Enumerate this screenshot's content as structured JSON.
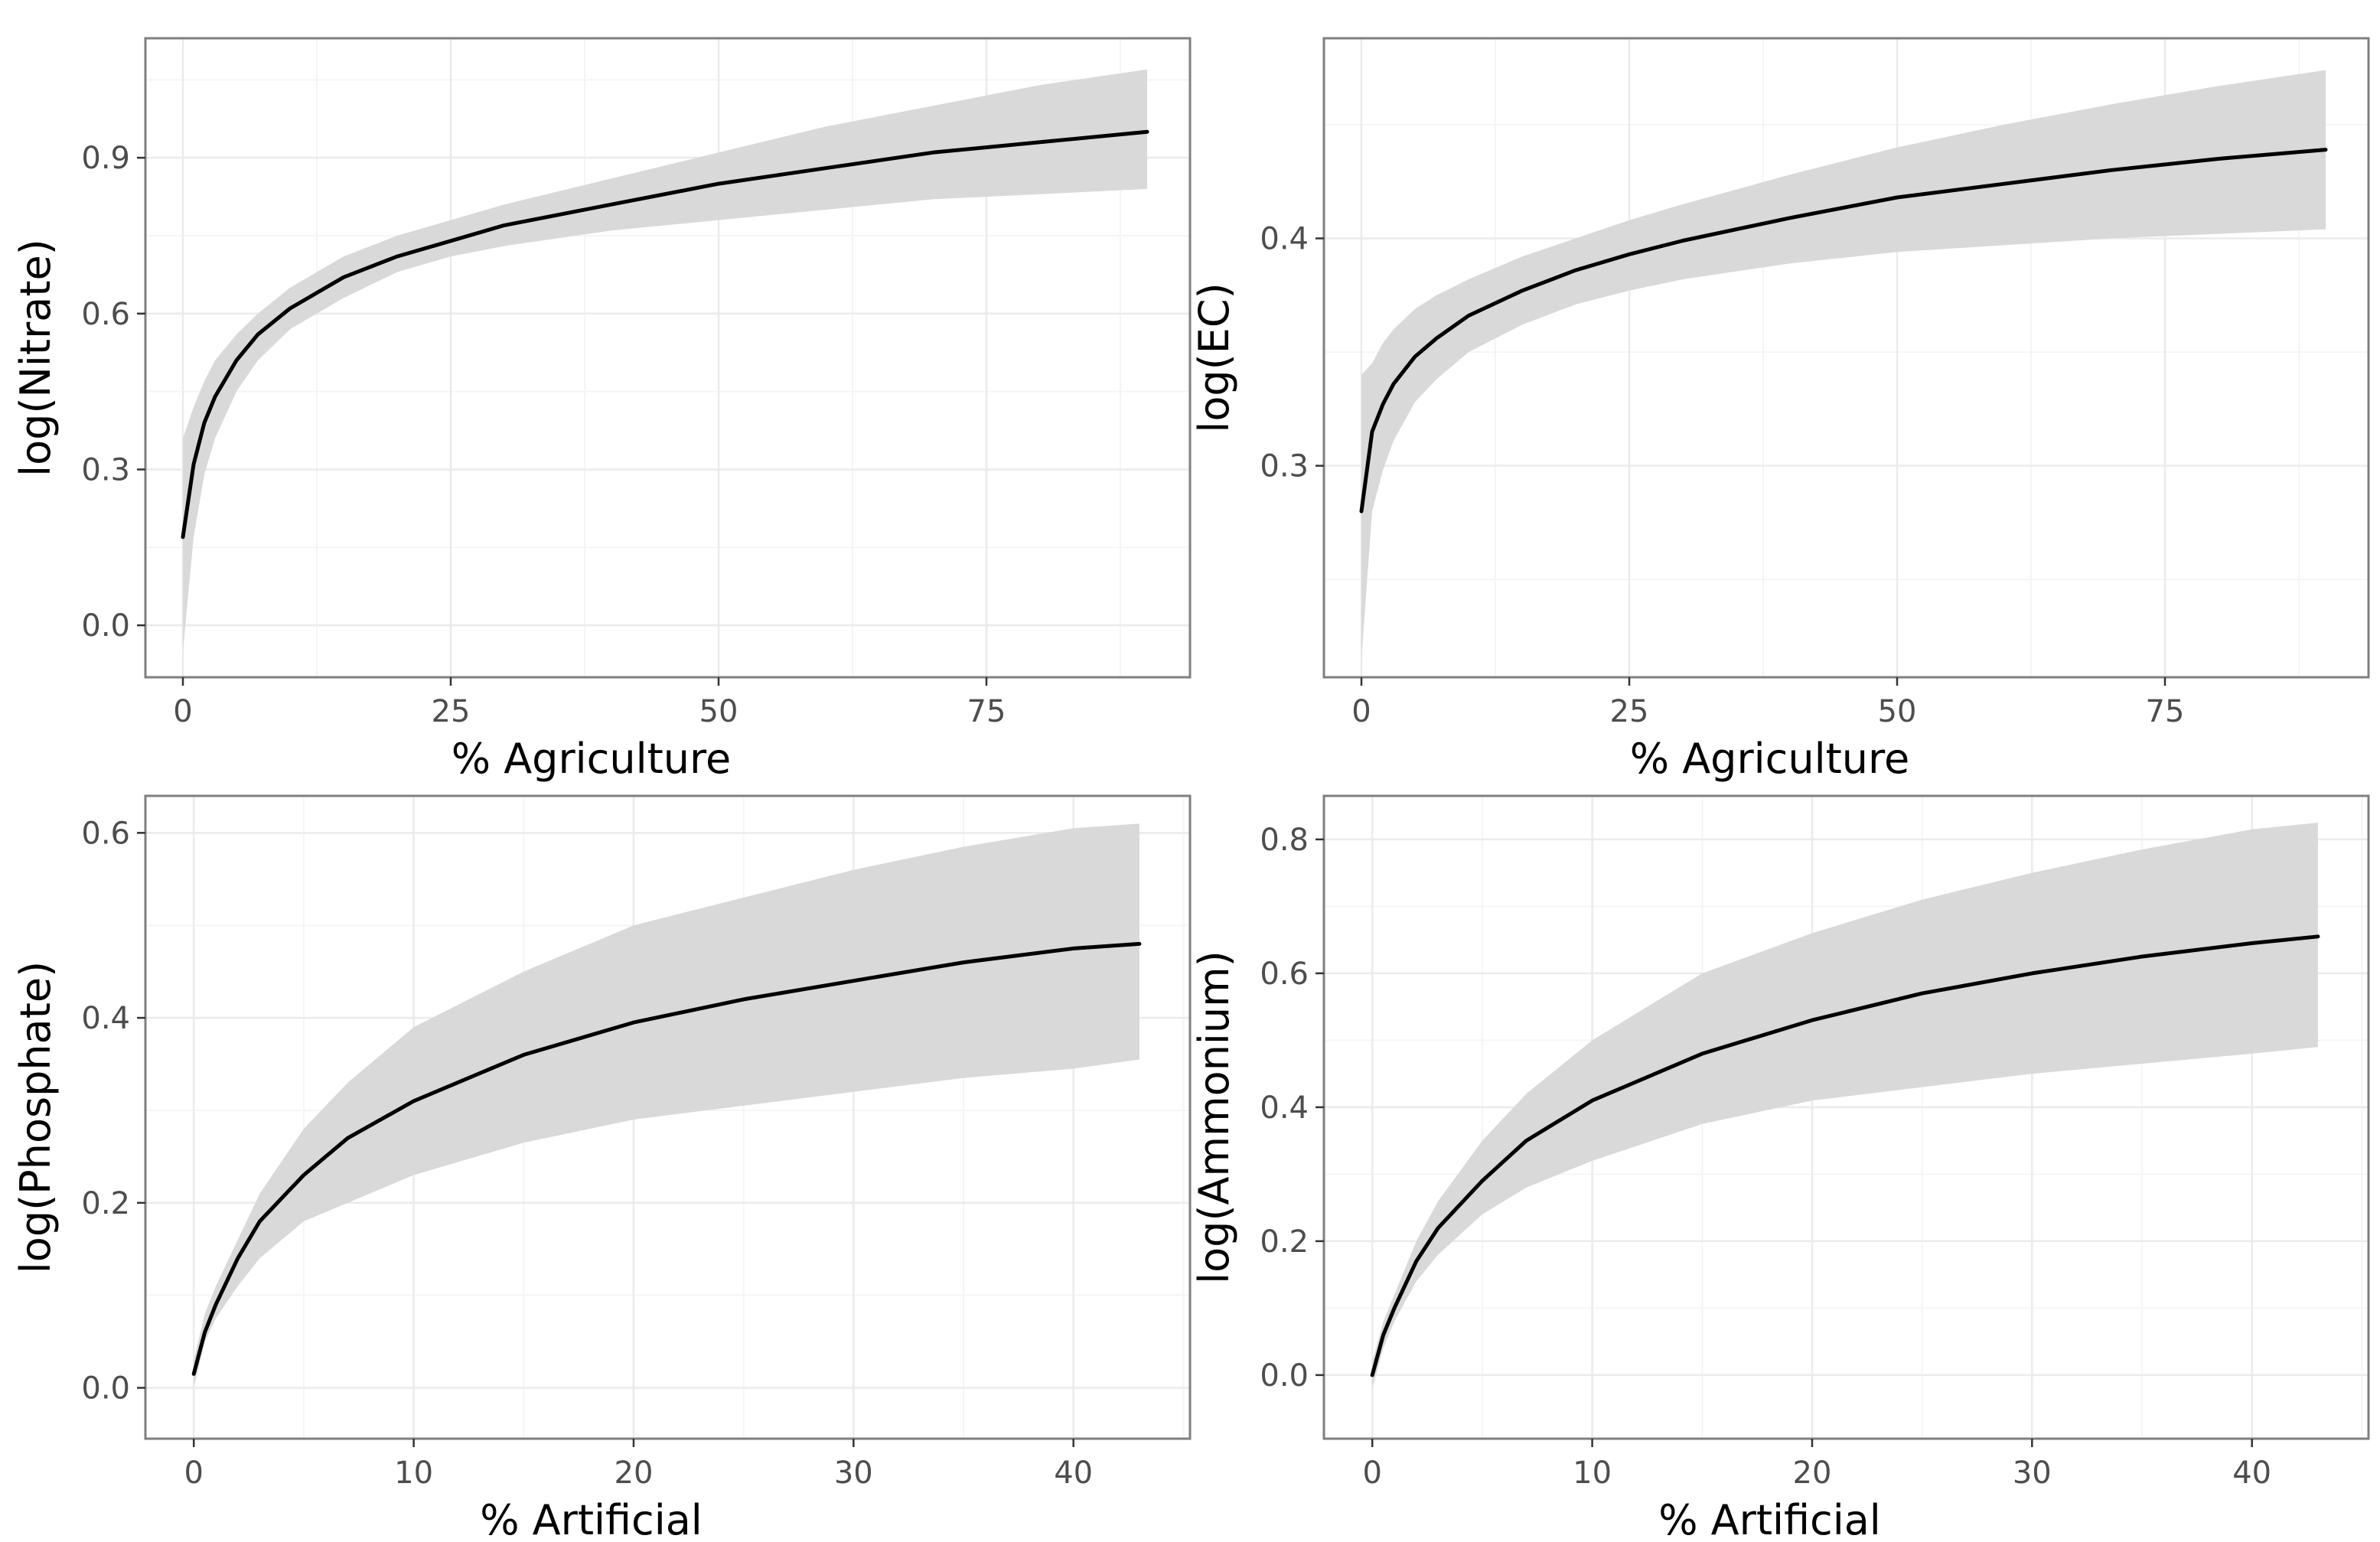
{
  "colors": {
    "background": "#ffffff",
    "panel_border": "#7f7f7f",
    "grid_major": "#ebebeb",
    "grid_minor": "#f5f5f5",
    "ribbon": "#d9d9d9",
    "line": "#000000",
    "tick_text": "#4d4d4d",
    "tick_mark": "#333333"
  },
  "chart_data": [
    {
      "type": "line",
      "title": "",
      "xlabel": "% Agriculture",
      "ylabel": "log(Nitrate)",
      "xlim": [
        -3.5,
        94
      ],
      "ylim": [
        -0.1,
        1.13
      ],
      "xticks": [
        0,
        25,
        50,
        75
      ],
      "xtick_labels": [
        "0",
        "25",
        "50",
        "75"
      ],
      "yticks": [
        0.0,
        0.3,
        0.6,
        0.9
      ],
      "ytick_labels": [
        "0.0",
        "0.3",
        "0.6",
        "0.9"
      ],
      "grid": true,
      "series": [
        {
          "x": [
            0,
            1,
            2,
            3,
            5,
            7,
            10,
            15,
            20,
            25,
            30,
            40,
            50,
            60,
            70,
            80,
            90
          ],
          "y": [
            0.17,
            0.31,
            0.39,
            0.44,
            0.51,
            0.56,
            0.61,
            0.67,
            0.71,
            0.74,
            0.77,
            0.81,
            0.85,
            0.88,
            0.91,
            0.93,
            0.95
          ],
          "lower": [
            -0.05,
            0.17,
            0.29,
            0.36,
            0.45,
            0.51,
            0.57,
            0.63,
            0.68,
            0.71,
            0.73,
            0.76,
            0.78,
            0.8,
            0.82,
            0.83,
            0.84
          ],
          "upper": [
            0.36,
            0.42,
            0.47,
            0.51,
            0.56,
            0.6,
            0.65,
            0.71,
            0.75,
            0.78,
            0.81,
            0.86,
            0.91,
            0.96,
            1.0,
            1.04,
            1.07
          ]
        }
      ]
    },
    {
      "type": "line",
      "title": "",
      "xlabel": "% Agriculture",
      "ylabel": "log(EC)",
      "xlim": [
        -3.5,
        94
      ],
      "ylim": [
        0.207,
        0.488
      ],
      "xticks": [
        0,
        25,
        50,
        75
      ],
      "xtick_labels": [
        "0",
        "25",
        "50",
        "75"
      ],
      "yticks": [
        0.3,
        0.4
      ],
      "ytick_labels": [
        "0.3",
        "0.4"
      ],
      "grid": true,
      "series": [
        {
          "x": [
            0,
            1,
            2,
            3,
            5,
            7,
            10,
            15,
            20,
            25,
            30,
            40,
            50,
            60,
            70,
            80,
            90
          ],
          "y": [
            0.28,
            0.315,
            0.327,
            0.336,
            0.348,
            0.356,
            0.366,
            0.377,
            0.386,
            0.393,
            0.399,
            0.409,
            0.418,
            0.424,
            0.43,
            0.435,
            0.439
          ],
          "lower": [
            0.215,
            0.28,
            0.298,
            0.311,
            0.328,
            0.338,
            0.35,
            0.362,
            0.371,
            0.377,
            0.382,
            0.389,
            0.394,
            0.397,
            0.4,
            0.402,
            0.404
          ],
          "upper": [
            0.34,
            0.345,
            0.354,
            0.36,
            0.369,
            0.375,
            0.382,
            0.392,
            0.4,
            0.408,
            0.415,
            0.428,
            0.44,
            0.45,
            0.459,
            0.467,
            0.474
          ]
        }
      ]
    },
    {
      "type": "line",
      "title": "",
      "xlabel": "% Artificial",
      "ylabel": "log(Phosphate)",
      "xlim": [
        -2.2,
        45.3
      ],
      "ylim": [
        -0.055,
        0.64
      ],
      "xticks": [
        0,
        10,
        20,
        30,
        40
      ],
      "xtick_labels": [
        "0",
        "10",
        "20",
        "30",
        "40"
      ],
      "yticks": [
        0.0,
        0.2,
        0.4,
        0.6
      ],
      "ytick_labels": [
        "0.0",
        "0.2",
        "0.4",
        "0.6"
      ],
      "grid": true,
      "series": [
        {
          "x": [
            0,
            0.5,
            1,
            2,
            3,
            5,
            7,
            10,
            15,
            20,
            25,
            30,
            35,
            40,
            43
          ],
          "y": [
            0.015,
            0.06,
            0.09,
            0.14,
            0.18,
            0.23,
            0.27,
            0.31,
            0.36,
            0.395,
            0.42,
            0.44,
            0.46,
            0.475,
            0.48
          ],
          "lower": [
            0.0,
            0.05,
            0.075,
            0.11,
            0.14,
            0.18,
            0.2,
            0.23,
            0.265,
            0.29,
            0.305,
            0.32,
            0.335,
            0.345,
            0.355
          ],
          "upper": [
            0.03,
            0.08,
            0.11,
            0.16,
            0.21,
            0.28,
            0.33,
            0.39,
            0.45,
            0.5,
            0.53,
            0.56,
            0.585,
            0.605,
            0.61
          ]
        }
      ]
    },
    {
      "type": "line",
      "title": "",
      "xlabel": "% Artificial",
      "ylabel": "log(Ammonium)",
      "xlim": [
        -2.2,
        45.3
      ],
      "ylim": [
        -0.095,
        0.865
      ],
      "xticks": [
        0,
        10,
        20,
        30,
        40
      ],
      "xtick_labels": [
        "0",
        "10",
        "20",
        "30",
        "40"
      ],
      "yticks": [
        0.0,
        0.2,
        0.4,
        0.6,
        0.8
      ],
      "ytick_labels": [
        "0.0",
        "0.2",
        "0.4",
        "0.6",
        "0.8"
      ],
      "grid": true,
      "series": [
        {
          "x": [
            0,
            0.5,
            1,
            2,
            3,
            5,
            7,
            10,
            15,
            20,
            25,
            30,
            35,
            40,
            43
          ],
          "y": [
            0.0,
            0.06,
            0.1,
            0.17,
            0.22,
            0.29,
            0.35,
            0.41,
            0.48,
            0.53,
            0.57,
            0.6,
            0.625,
            0.645,
            0.655
          ],
          "lower": [
            -0.02,
            0.04,
            0.08,
            0.14,
            0.18,
            0.24,
            0.28,
            0.32,
            0.375,
            0.41,
            0.43,
            0.45,
            0.465,
            0.48,
            0.49
          ],
          "upper": [
            0.02,
            0.08,
            0.12,
            0.2,
            0.26,
            0.35,
            0.42,
            0.5,
            0.6,
            0.66,
            0.71,
            0.75,
            0.785,
            0.815,
            0.825
          ]
        }
      ]
    }
  ]
}
